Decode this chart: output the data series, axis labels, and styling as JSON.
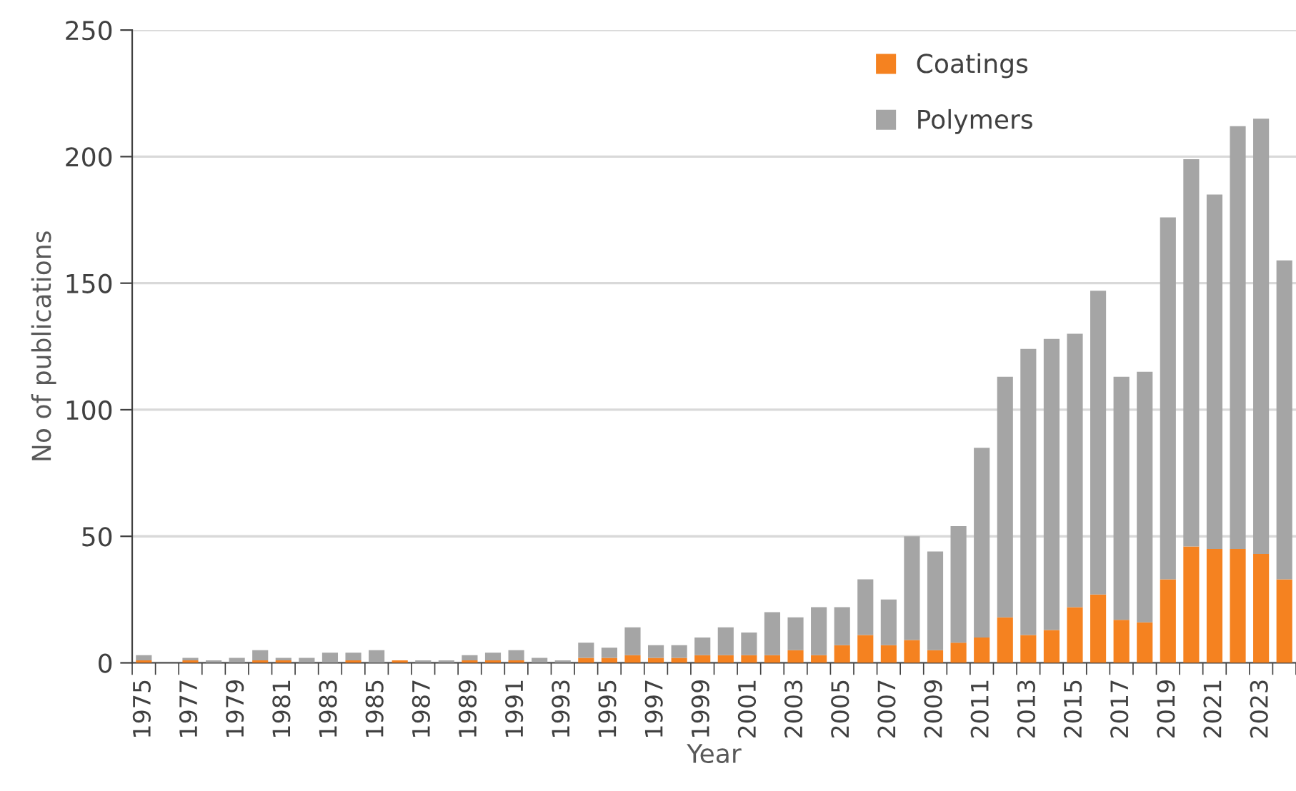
{
  "chart_data": {
    "type": "bar",
    "stacked": true,
    "xlabel": "Year",
    "ylabel": "No of publications",
    "categories": [
      "1975",
      null,
      "1977",
      null,
      "1979",
      null,
      "1981",
      null,
      "1983",
      null,
      "1985",
      null,
      "1987",
      null,
      "1989",
      null,
      "1991",
      null,
      "1993",
      null,
      "1995",
      null,
      "1997",
      null,
      "1999",
      null,
      "2001",
      null,
      "2003",
      null,
      "2005",
      null,
      "2007",
      null,
      "2009",
      null,
      "2011",
      null,
      "2013",
      null,
      "2015",
      null,
      "2017",
      null,
      "2019",
      null,
      "2021",
      null,
      "2023",
      null
    ],
    "series": [
      {
        "name": "Coatings",
        "color": "#f58220",
        "values": [
          1,
          0,
          1,
          0,
          0,
          1,
          1,
          0,
          0,
          1,
          0,
          1,
          0,
          0,
          1,
          1,
          1,
          0,
          0,
          2,
          2,
          3,
          2,
          2,
          3,
          3,
          3,
          3,
          5,
          3,
          7,
          11,
          7,
          9,
          5,
          8,
          10,
          18,
          11,
          13,
          22,
          27,
          17,
          16,
          33,
          46,
          45,
          45,
          43,
          33
        ]
      },
      {
        "name": "Polymers",
        "color": "#a5a5a5",
        "values": [
          2,
          0,
          1,
          1,
          2,
          4,
          1,
          2,
          4,
          3,
          5,
          0,
          1,
          1,
          2,
          3,
          4,
          2,
          1,
          6,
          4,
          11,
          5,
          5,
          7,
          11,
          9,
          17,
          13,
          19,
          15,
          22,
          18,
          41,
          39,
          46,
          75,
          95,
          113,
          115,
          108,
          120,
          96,
          99,
          143,
          153,
          140,
          167,
          172,
          126
        ]
      }
    ],
    "ylim": [
      0,
      250
    ],
    "yticks": [
      0,
      50,
      100,
      150,
      200,
      250
    ],
    "grid": "y",
    "legend": "top"
  }
}
